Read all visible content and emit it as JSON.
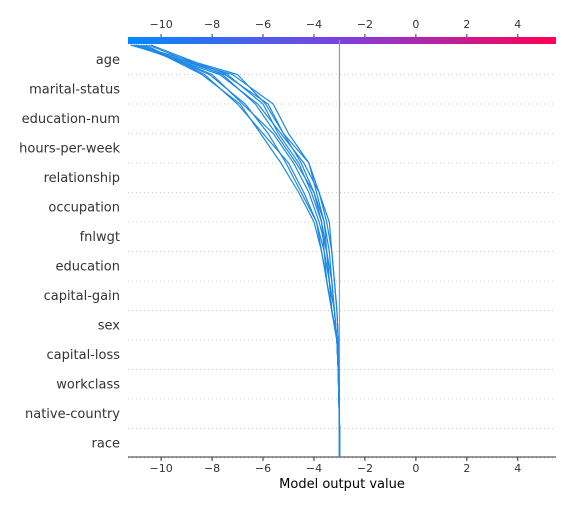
{
  "chart_data": {
    "type": "decision-plot",
    "xlabel": "Model output value",
    "xlim": [
      -11.3,
      5.5
    ],
    "xticks": [
      -10,
      -8,
      -6,
      -4,
      -2,
      0,
      2,
      4
    ],
    "base_value": -3,
    "colorbar": {
      "low_color": "#008bfb",
      "mid_color": "#7f3fe0",
      "high_color": "#ff0052"
    },
    "line_color": "#1e88e5",
    "features": [
      "age",
      "marital-status",
      "education-num",
      "hours-per-week",
      "relationship",
      "occupation",
      "fnlwgt",
      "education",
      "capital-gain",
      "sex",
      "capital-loss",
      "workclass",
      "native-country",
      "race"
    ],
    "paths": [
      [
        -11.2,
        -7.2,
        -5.6,
        -5.0,
        -4.2,
        -3.9,
        -3.6,
        -3.4,
        -3.3,
        -3.2,
        -3.1,
        -3.05,
        -3.02,
        -3.0
      ],
      [
        -11.0,
        -7.5,
        -5.8,
        -5.2,
        -4.5,
        -4.0,
        -3.7,
        -3.5,
        -3.4,
        -3.3,
        -3.1,
        -3.05,
        -3.02,
        -3.0
      ],
      [
        -10.8,
        -8.0,
        -6.8,
        -5.6,
        -4.8,
        -4.2,
        -3.8,
        -3.5,
        -3.3,
        -3.2,
        -3.1,
        -3.05,
        -3.02,
        -3.0
      ],
      [
        -10.6,
        -8.3,
        -7.0,
        -6.0,
        -5.0,
        -4.4,
        -3.9,
        -3.6,
        -3.5,
        -3.3,
        -3.1,
        -3.05,
        -3.02,
        -3.0
      ],
      [
        -11.1,
        -7.7,
        -6.2,
        -5.3,
        -4.4,
        -3.8,
        -3.5,
        -3.3,
        -3.2,
        -3.1,
        -3.05,
        -3.02,
        -3.01,
        -3.0
      ],
      [
        -10.4,
        -7.4,
        -6.0,
        -5.4,
        -4.6,
        -4.1,
        -3.7,
        -3.6,
        -3.4,
        -3.3,
        -3.1,
        -3.05,
        -3.02,
        -3.0
      ],
      [
        -10.9,
        -8.1,
        -6.7,
        -5.8,
        -5.1,
        -4.5,
        -3.9,
        -3.7,
        -3.5,
        -3.3,
        -3.1,
        -3.05,
        -3.02,
        -3.0
      ],
      [
        -11.0,
        -7.0,
        -5.9,
        -5.2,
        -4.2,
        -3.8,
        -3.4,
        -3.3,
        -3.2,
        -3.1,
        -3.05,
        -3.02,
        -3.01,
        -3.0
      ],
      [
        -10.7,
        -8.4,
        -6.9,
        -6.1,
        -5.3,
        -4.6,
        -4.0,
        -3.7,
        -3.5,
        -3.3,
        -3.1,
        -3.05,
        -3.02,
        -3.0
      ],
      [
        -10.5,
        -7.6,
        -6.3,
        -5.5,
        -4.7,
        -4.0,
        -3.6,
        -3.5,
        -3.4,
        -3.2,
        -3.1,
        -3.05,
        -3.02,
        -3.0
      ]
    ]
  }
}
